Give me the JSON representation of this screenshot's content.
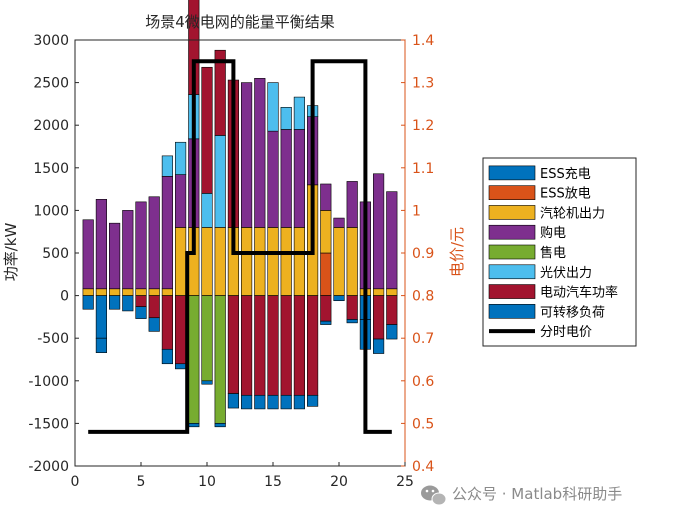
{
  "chart_data": {
    "type": "bar",
    "title": "场景4微电网的能量平衡结果",
    "ylabel_left": "功率/kW",
    "ylabel_right": "电价/元",
    "xlim": [
      0,
      25
    ],
    "ylim_left": [
      -2000,
      3000
    ],
    "ylim_right": [
      0.4,
      1.4
    ],
    "x_ticks": [
      0,
      5,
      10,
      15,
      20,
      25
    ],
    "y_ticks_left": [
      -2000,
      -1500,
      -1000,
      -500,
      0,
      500,
      1000,
      1500,
      2000,
      2500,
      3000
    ],
    "y_ticks_right": [
      0.4,
      0.5,
      0.6,
      0.7,
      0.8,
      0.9,
      1.0,
      1.1,
      1.2,
      1.3,
      1.4
    ],
    "x_tick_labels": [
      "0",
      "5",
      "10",
      "15",
      "20",
      "25"
    ],
    "y_tick_labels_left": [
      "-2000",
      "-1500",
      "-1000",
      "-500",
      "0",
      "500",
      "1000",
      "1500",
      "2000",
      "2500",
      "3000"
    ],
    "y_tick_labels_right": [
      "0.4",
      "0.5",
      "0.6",
      "0.7",
      "0.8",
      "0.9",
      "1",
      "1.1",
      "1.2",
      "1.3",
      "1.4"
    ],
    "hours": [
      1,
      2,
      3,
      4,
      5,
      6,
      7,
      8,
      9,
      10,
      11,
      12,
      13,
      14,
      15,
      16,
      17,
      18,
      19,
      20,
      21,
      22,
      23,
      24
    ],
    "positive_series": [
      {
        "name": "ESS放电",
        "color": "#D95319",
        "values": [
          0,
          0,
          0,
          0,
          0,
          0,
          0,
          0,
          0,
          0,
          0,
          0,
          0,
          0,
          0,
          0,
          0,
          0,
          500,
          0,
          0,
          0,
          0,
          0
        ]
      },
      {
        "name": "汽轮机出力",
        "color": "#EDB120",
        "values": [
          80,
          80,
          80,
          80,
          80,
          80,
          80,
          800,
          800,
          800,
          800,
          800,
          800,
          800,
          800,
          800,
          800,
          1300,
          500,
          800,
          800,
          80,
          80,
          80
        ]
      },
      {
        "name": "购电",
        "color": "#7E2F8E",
        "values": [
          810,
          1050,
          770,
          920,
          1020,
          1080,
          1320,
          620,
          1040,
          0,
          0,
          0,
          1700,
          1750,
          1130,
          1150,
          1150,
          800,
          310,
          110,
          540,
          1020,
          1350,
          1140
        ]
      },
      {
        "name": "光伏出力",
        "color": "#4DBEEE",
        "values": [
          0,
          0,
          0,
          0,
          0,
          0,
          240,
          380,
          520,
          400,
          1080,
          0,
          0,
          0,
          0,
          0,
          0,
          0,
          0,
          0,
          0,
          0,
          0,
          0
        ]
      },
      {
        "name": "电动汽车功率",
        "color": "#A2142F",
        "values": [
          0,
          0,
          0,
          0,
          0,
          0,
          0,
          0,
          1200,
          1480,
          1000,
          1730,
          0,
          0,
          0,
          0,
          0,
          0,
          0,
          0,
          0,
          0,
          0,
          0
        ]
      },
      {
        "name": "光伏出力",
        "color": "#4DBEEE",
        "values": [
          0,
          0,
          0,
          0,
          0,
          0,
          0,
          0,
          0,
          0,
          0,
          0,
          0,
          0,
          570,
          260,
          380,
          130,
          0,
          0,
          0,
          0,
          0,
          0
        ]
      }
    ],
    "negative_series": [
      {
        "name": "售电",
        "color": "#77AC30",
        "values": [
          0,
          0,
          0,
          0,
          0,
          0,
          0,
          0,
          -1500,
          -1000,
          -1500,
          0,
          0,
          0,
          0,
          0,
          0,
          0,
          0,
          0,
          0,
          0,
          0,
          0
        ]
      },
      {
        "name": "电动汽车功率",
        "color": "#A2142F",
        "values": [
          0,
          0,
          0,
          0,
          -130,
          -260,
          -630,
          -800,
          0,
          0,
          0,
          -1150,
          -1170,
          -1170,
          -1170,
          -1170,
          -1170,
          -1170,
          -300,
          0,
          -280,
          0,
          -510,
          -340
        ]
      },
      {
        "name": "可转移负荷",
        "color": "#0072BD",
        "values": [
          -160,
          -500,
          -160,
          -180,
          -140,
          -160,
          -170,
          -60,
          -40,
          -40,
          -40,
          -170,
          -160,
          -160,
          -160,
          -160,
          -160,
          -130,
          -40,
          -60,
          -40,
          -280,
          -170,
          -170
        ]
      },
      {
        "name": "ESS充电",
        "color": "#0072BD",
        "values": [
          0,
          -170,
          0,
          0,
          0,
          0,
          0,
          0,
          0,
          0,
          0,
          0,
          0,
          0,
          0,
          0,
          0,
          0,
          0,
          0,
          0,
          -350,
          0,
          0
        ]
      }
    ],
    "price_series": {
      "name": "分时电价",
      "color": "#000000",
      "steps": [
        {
          "x": 1,
          "y": 0.48
        },
        {
          "x": 8.5,
          "y": 0.48
        },
        {
          "x": 8.5,
          "y": 0.9
        },
        {
          "x": 9,
          "y": 0.9
        },
        {
          "x": 9,
          "y": 1.35
        },
        {
          "x": 12,
          "y": 1.35
        },
        {
          "x": 12,
          "y": 0.9
        },
        {
          "x": 18,
          "y": 0.9
        },
        {
          "x": 18,
          "y": 1.35
        },
        {
          "x": 22,
          "y": 1.35
        },
        {
          "x": 22,
          "y": 0.48
        },
        {
          "x": 24,
          "y": 0.48
        }
      ]
    },
    "legend": {
      "placement": "right",
      "items": [
        {
          "label": "ESS充电",
          "kind": "patch",
          "color": "#0072BD"
        },
        {
          "label": "ESS放电",
          "kind": "patch",
          "color": "#D95319"
        },
        {
          "label": "汽轮机出力",
          "kind": "patch",
          "color": "#EDB120"
        },
        {
          "label": "购电",
          "kind": "patch",
          "color": "#7E2F8E"
        },
        {
          "label": "售电",
          "kind": "patch",
          "color": "#77AC30"
        },
        {
          "label": "光伏出力",
          "kind": "patch",
          "color": "#4DBEEE"
        },
        {
          "label": "电动汽车功率",
          "kind": "patch",
          "color": "#A2142F"
        },
        {
          "label": "可转移负荷",
          "kind": "patch",
          "color": "#0072BD"
        },
        {
          "label": "分时电价",
          "kind": "line",
          "color": "#000000"
        }
      ]
    },
    "grid": false
  },
  "watermark": {
    "text": "公众号 · Matlab科研助手",
    "icon": "wechat-icon"
  }
}
